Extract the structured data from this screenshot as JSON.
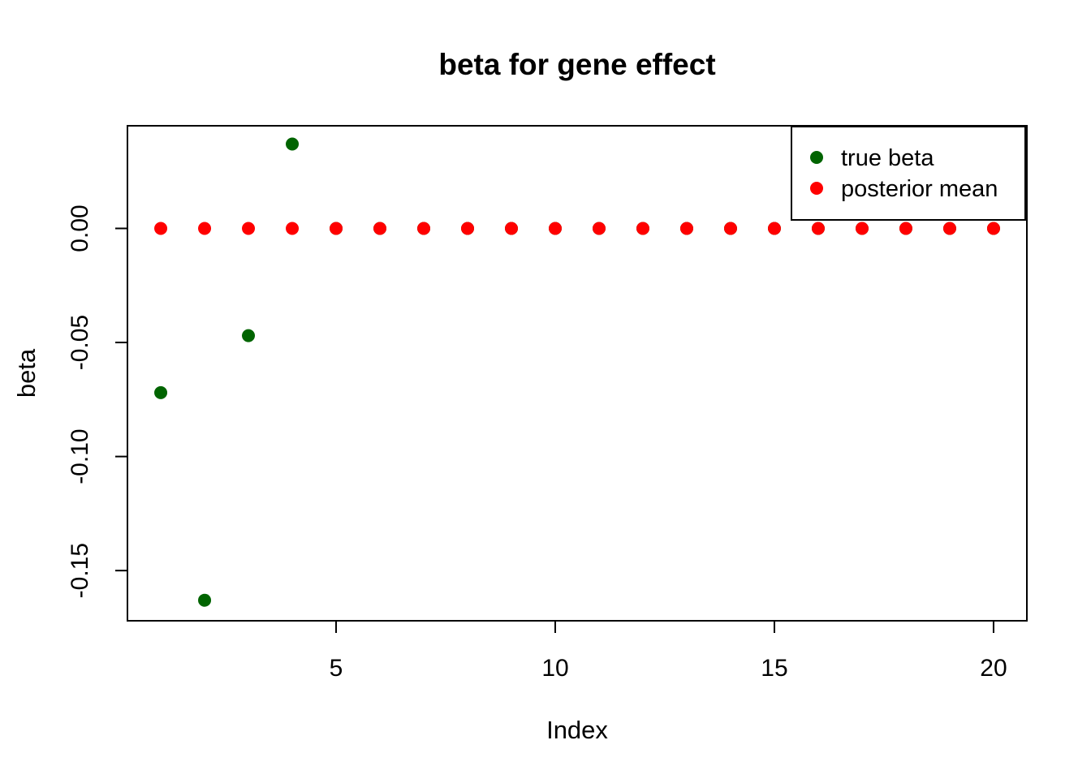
{
  "figure": {
    "background": "#FFFFFF",
    "frame_color": "#000000"
  },
  "chart_data": {
    "type": "scatter",
    "title": "beta for gene effect",
    "xlabel": "Index",
    "ylabel": "beta",
    "x": [
      1,
      2,
      3,
      4,
      5,
      6,
      7,
      8,
      9,
      10,
      11,
      12,
      13,
      14,
      15,
      16,
      17,
      18,
      19,
      20
    ],
    "series": [
      {
        "name": "true beta",
        "color": "#006400",
        "marker": "filled-circle",
        "values": [
          -0.072,
          -0.163,
          -0.047,
          0.037,
          0,
          0,
          0,
          0,
          0,
          0,
          0,
          0,
          0,
          0,
          0,
          0,
          0,
          0,
          0,
          0
        ]
      },
      {
        "name": "posterior mean",
        "color": "#FF0000",
        "marker": "filled-circle",
        "values": [
          0,
          0,
          0,
          0,
          0,
          0,
          0,
          0,
          0,
          0,
          0,
          0,
          0,
          0,
          0,
          0,
          0,
          0,
          0,
          0
        ]
      }
    ],
    "xticks": [
      5,
      10,
      15,
      20
    ],
    "xtick_labels": [
      "5",
      "10",
      "15",
      "20"
    ],
    "yticks": [
      0,
      -0.05,
      -0.1,
      -0.15
    ],
    "ytick_labels": [
      "0.00",
      "-0.05",
      "-0.10",
      "-0.15"
    ],
    "xlim": [
      0.24,
      20.76
    ],
    "ylim": [
      -0.172,
      0.045
    ],
    "grid": false,
    "point_radius": 8,
    "legend_position": "top-right"
  }
}
